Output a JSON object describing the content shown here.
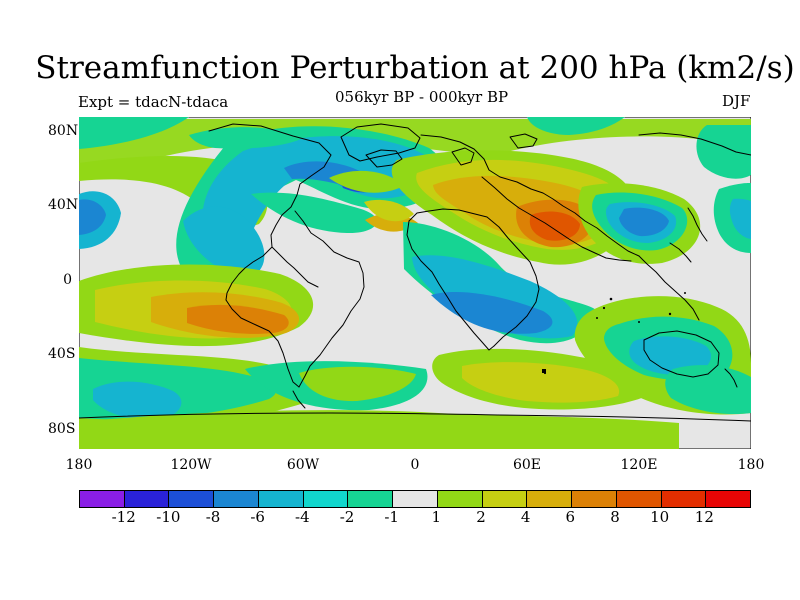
{
  "title": "Streamfunction Perturbation at 200 hPa (km2/s)",
  "left_label": "Expt = tdacN-tdaca",
  "center_label": "056kyr BP - 000kyr BP",
  "right_label": "DJF",
  "y_ticks": [
    "80N",
    "40N",
    "0",
    "40S",
    "80S"
  ],
  "x_ticks": [
    "180",
    "120W",
    "60W",
    "0",
    "60E",
    "120E",
    "180"
  ],
  "colorbar": {
    "labels": [
      "-12",
      "-10",
      "-8",
      "-6",
      "-4",
      "-2",
      "-1",
      "1",
      "2",
      "4",
      "6",
      "8",
      "10",
      "12"
    ],
    "colors": [
      "#8a1ee6",
      "#2a22d9",
      "#1c4fd7",
      "#1b86d2",
      "#15b4d0",
      "#11d6cd",
      "#16d493",
      "#e6e6e6",
      "#92d816",
      "#c6cf12",
      "#d7ae0b",
      "#dc8106",
      "#e05600",
      "#e32e00",
      "#e70505"
    ]
  },
  "chart_data": {
    "type": "heatmap",
    "title": "Streamfunction Perturbation at 200 hPa (km2/s)",
    "subtitle": "056kyr BP - 000kyr BP",
    "season": "DJF",
    "xlim": [
      -180,
      180
    ],
    "ylim": [
      -90,
      90
    ],
    "projection": "cylindrical equidistant",
    "grid": false,
    "colorbar_levels": [
      -12,
      -10,
      -8,
      -6,
      -4,
      -2,
      -1,
      1,
      2,
      4,
      6,
      8,
      10,
      12
    ]
  },
  "map_icon": "global-map-icon"
}
